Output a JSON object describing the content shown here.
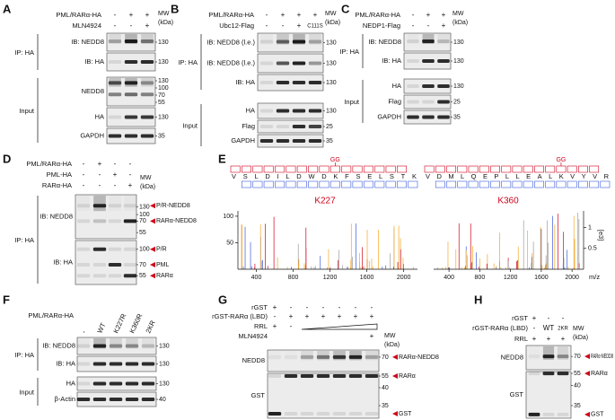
{
  "panels": [
    {
      "letter": "A",
      "conditions": [
        {
          "label": "PML/RARα-HA",
          "lanes": [
            "-",
            "+",
            "+"
          ]
        },
        {
          "label": "MLN4924",
          "lanes": [
            "-",
            "-",
            "+"
          ]
        }
      ],
      "mw": "MW",
      "mw_unit": "(kDa)",
      "groups": [
        {
          "label": "IP: HA",
          "blots": [
            {
              "label": "IB: NEDD8",
              "markers": [
                130
              ]
            },
            {
              "label": "IB: HA",
              "markers": [
                130
              ]
            }
          ]
        },
        {
          "label": "Input",
          "blots": [
            {
              "label": "NEDD8",
              "markers": [
                130,
                100,
                70,
                55
              ]
            },
            {
              "label": "HA",
              "markers": [
                130
              ]
            },
            {
              "label": "GAPDH",
              "markers": [
                35
              ]
            }
          ]
        }
      ]
    },
    {
      "letter": "B",
      "conditions": [
        {
          "label": "PML/RARα-HA",
          "lanes": [
            "-",
            "+",
            "+",
            "+"
          ]
        },
        {
          "label": "Ubc12-Flag",
          "lanes": [
            "-",
            "-",
            "+",
            "C111S"
          ]
        }
      ],
      "mw": "MW",
      "mw_unit": "(kDa)",
      "groups": [
        {
          "label": "IP: HA",
          "blots": [
            {
              "label": "IB: NEDD8 (l.e.)",
              "markers": [
                130
              ]
            },
            {
              "label": "IB: NEDD8 (l.e.)",
              "markers": [
                130
              ]
            },
            {
              "label": "IB: HA",
              "markers": [
                130
              ]
            }
          ]
        },
        {
          "label": "Input",
          "blots": [
            {
              "label": "HA",
              "markers": [
                130
              ]
            },
            {
              "label": "Flag",
              "markers": [
                25
              ]
            },
            {
              "label": "GAPDH",
              "markers": [
                35
              ]
            }
          ]
        }
      ]
    },
    {
      "letter": "C",
      "conditions": [
        {
          "label": "PML/RARα-HA",
          "lanes": [
            "-",
            "+",
            "+"
          ]
        },
        {
          "label": "NEDP1-Flag",
          "lanes": [
            "-",
            "-",
            "+"
          ]
        }
      ],
      "mw": "MW",
      "mw_unit": "(kDa)",
      "groups": [
        {
          "label": "IP: HA",
          "blots": [
            {
              "label": "IB: NEDD8",
              "markers": [
                130
              ]
            },
            {
              "label": "IB: HA",
              "markers": [
                130
              ]
            }
          ]
        },
        {
          "label": "Input",
          "blots": [
            {
              "label": "HA",
              "markers": [
                130
              ]
            },
            {
              "label": "Flag",
              "markers": [
                25
              ]
            },
            {
              "label": "GAPDH",
              "markers": [
                35
              ]
            }
          ]
        }
      ]
    },
    {
      "letter": "D",
      "conditions": [
        {
          "label": "PML/RARα-HA",
          "lanes": [
            "-",
            "+",
            "-",
            "-"
          ]
        },
        {
          "label": "PML-HA",
          "lanes": [
            "-",
            "-",
            "+",
            "-"
          ]
        },
        {
          "label": "RARα-HA",
          "lanes": [
            "-",
            "-",
            "-",
            "+"
          ]
        }
      ],
      "mw": "MW",
      "mw_unit": "(kDa)",
      "groups": [
        {
          "label": "IP: HA",
          "blots": [
            {
              "label": "IB: NEDD8",
              "markers": [
                130,
                100,
                70,
                55
              ],
              "arrows": [
                "P/R-NEDD8",
                "RARα-NEDD8"
              ]
            },
            {
              "label": "IB: HA",
              "markers": [
                100,
                70,
                55
              ],
              "arrows": [
                "P/R",
                "PML",
                "RARα"
              ]
            }
          ]
        }
      ]
    },
    {
      "letter": "F",
      "conditions": [
        {
          "label": "PML/RARα-HA",
          "lanes": [
            "-",
            "WT",
            "K227R",
            "K360R",
            "2KR"
          ]
        }
      ],
      "groups": [
        {
          "label": "IP: HA",
          "blots": [
            {
              "label": "IB: NEDD8",
              "markers": [
                130
              ]
            },
            {
              "label": "IB: HA",
              "markers": [
                130
              ]
            }
          ]
        },
        {
          "label": "Input",
          "blots": [
            {
              "label": "HA",
              "markers": [
                130
              ]
            },
            {
              "label": "β-Actin",
              "markers": [
                40
              ]
            }
          ]
        }
      ]
    },
    {
      "letter": "G",
      "conditions": [
        {
          "label": "rGST",
          "lanes": [
            "+",
            "-",
            "-",
            "-",
            "-",
            "-",
            "-"
          ]
        },
        {
          "label": "rGST-RARα (LBD)",
          "lanes": [
            "-",
            "+",
            "+",
            "+",
            "+",
            "+",
            "+"
          ]
        },
        {
          "label": "RRL",
          "lanes": [
            "+",
            "-",
            null,
            null,
            null,
            null,
            null
          ]
        },
        {
          "label": "MLN4924",
          "lanes": [
            null,
            null,
            null,
            null,
            null,
            null,
            "+"
          ]
        }
      ],
      "mw": "MW",
      "mw_unit": "(kDa)",
      "groups": [
        {
          "blots": [
            {
              "label": "NEDD8",
              "markers": [
                70
              ],
              "arrows": [
                "RARα-NEDD8"
              ]
            },
            {
              "label": "GST",
              "markers": [
                55,
                40,
                35
              ],
              "arrows": [
                "RARα",
                "GST"
              ]
            }
          ]
        }
      ]
    },
    {
      "letter": "H",
      "conditions": [
        {
          "label": "rGST",
          "lanes": [
            "+",
            "-",
            "-"
          ]
        },
        {
          "label": "rGST-RARα (LBD)",
          "lanes": [
            "-",
            "WT",
            "2KR"
          ]
        },
        {
          "label": "RRL",
          "lanes": [
            "+",
            "+",
            "+"
          ]
        }
      ],
      "mw": "MW",
      "mw_unit": "(kDa)",
      "groups": [
        {
          "blots": [
            {
              "label": "NEDD8",
              "markers": [
                70
              ],
              "arrows": [
                "RARα-NEDD8"
              ]
            },
            {
              "label": "GST",
              "markers": [
                55,
                40,
                35
              ],
              "arrows": [
                "RARα",
                "GST"
              ]
            }
          ]
        }
      ]
    }
  ],
  "spectra": {
    "letter": "E",
    "x_label": "m/z",
    "y2_label": "[e3]",
    "peptides": [
      {
        "sequence": "VSLDILDWDKFSELSTK",
        "mod": "GG",
        "site": "K227",
        "xlim": [
          200,
          2150
        ],
        "xticks": [
          400,
          800,
          1200,
          1600,
          2000
        ],
        "ylim": [
          0,
          110
        ],
        "yticks": [
          100,
          50
        ]
      },
      {
        "sequence": "VDMLQEPLLEALKVYVR",
        "mod": "GG",
        "site": "K360",
        "xlim": [
          200,
          2150
        ],
        "xticks": [
          400,
          800,
          1200,
          1600,
          2000
        ],
        "ylim": [
          0,
          1.4
        ],
        "yticks": [
          1,
          0.5
        ],
        "axis": "y2"
      }
    ]
  }
}
